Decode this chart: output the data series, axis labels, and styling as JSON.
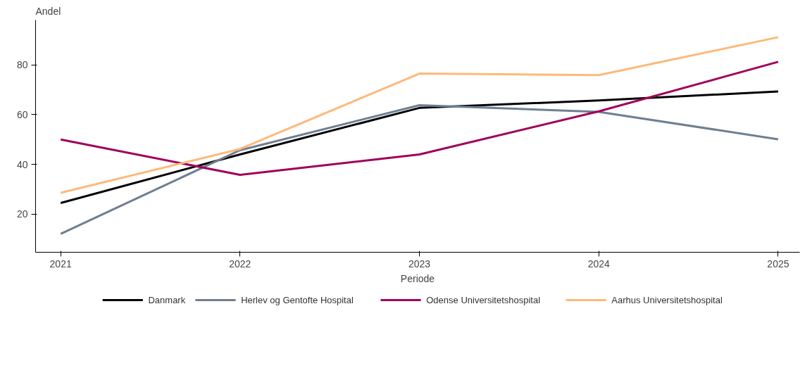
{
  "chart_data": {
    "type": "line",
    "xlabel": "Periode",
    "ylabel": "Andel",
    "x": [
      2021,
      2022,
      2023,
      2024,
      2025
    ],
    "xlim": [
      2020.86,
      2025.12
    ],
    "xticks": [
      2021,
      2022,
      2023,
      2024,
      2025
    ],
    "ylim": [
      4.7,
      98
    ],
    "yticks": [
      20,
      40,
      60,
      80
    ],
    "grid": false,
    "legend": "bottom",
    "line_style": "solid",
    "marker": "none",
    "series": [
      {
        "name": "Danmark",
        "color": "#000000",
        "values": [
          24.5,
          44,
          62.7,
          65.7,
          69.3
        ]
      },
      {
        "name": "Herlev og Gentofte Hospital",
        "color": "#6e7f91",
        "values": [
          12.1,
          45.7,
          63.8,
          61.1,
          50.1
        ]
      },
      {
        "name": "Odense Universitetshospital",
        "color": "#a0005a",
        "values": [
          50,
          35.8,
          44,
          61.3,
          81.2
        ]
      },
      {
        "name": "Aarhus Universitetshospital",
        "color": "#fdb97a",
        "values": [
          28.6,
          46.2,
          76.5,
          75.9,
          91.1
        ]
      }
    ]
  }
}
